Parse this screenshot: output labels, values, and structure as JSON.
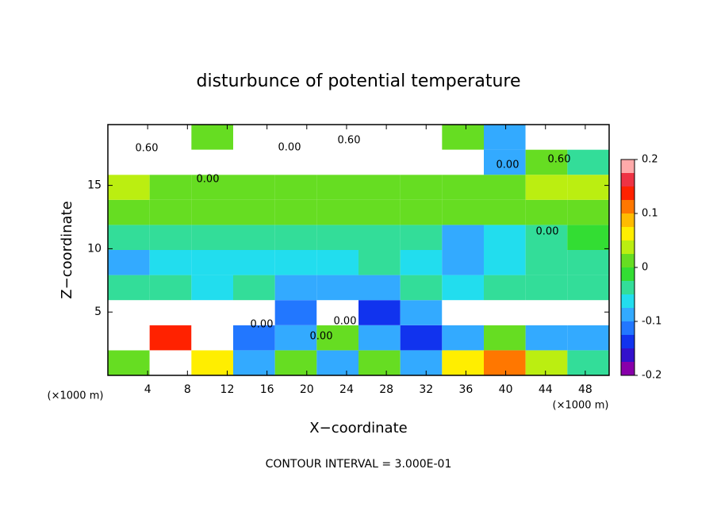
{
  "chart_data": {
    "type": "heatmap",
    "title": "disturbunce of potential temperature",
    "x_label": "X−coordinate",
    "y_label": "Z−coordinate",
    "x_unit": "(×1000 m)",
    "y_unit": "(×1000 m)",
    "footer": "CONTOUR INTERVAL = 3.000E-01",
    "xlim": [
      0,
      50.4
    ],
    "ylim": [
      0,
      19.8
    ],
    "xticks": [
      4,
      8,
      12,
      16,
      20,
      24,
      28,
      32,
      36,
      40,
      44,
      48
    ],
    "yticks": [
      5,
      10,
      15
    ],
    "x": [
      2.1,
      6.3,
      10.5,
      14.7,
      18.9,
      23.1,
      27.3,
      31.5,
      35.7,
      39.9,
      44.1,
      48.3
    ],
    "y": [
      0.99,
      2.97,
      4.95,
      6.93,
      8.91,
      10.89,
      12.87,
      14.85,
      16.83,
      18.81
    ],
    "values": [
      [
        0.02,
        -0.3,
        0.05,
        -0.1,
        0.0,
        -0.08,
        0.02,
        -0.1,
        0.05,
        0.1,
        0.03,
        -0.05
      ],
      [
        -0.3,
        0.15,
        -0.3,
        -0.12,
        -0.1,
        0.02,
        -0.1,
        -0.15,
        -0.08,
        0.02,
        -0.1,
        -0.1
      ],
      [
        -0.3,
        -0.3,
        -0.3,
        -0.3,
        -0.12,
        -0.3,
        -0.15,
        -0.1,
        -0.3,
        -0.3,
        -0.3,
        -0.3
      ],
      [
        -0.05,
        -0.05,
        -0.06,
        -0.05,
        -0.1,
        -0.1,
        -0.08,
        -0.04,
        -0.06,
        -0.05,
        -0.05,
        -0.05
      ],
      [
        -0.08,
        -0.06,
        -0.06,
        -0.07,
        -0.06,
        -0.06,
        -0.05,
        -0.07,
        -0.1,
        -0.06,
        -0.05,
        -0.04
      ],
      [
        -0.04,
        -0.05,
        -0.04,
        -0.04,
        -0.05,
        -0.05,
        -0.04,
        -0.05,
        -0.08,
        -0.06,
        -0.03,
        -0.02
      ],
      [
        0.02,
        0.01,
        0.01,
        0.02,
        0.02,
        0.02,
        0.01,
        0.02,
        0.02,
        0.0,
        0.01,
        0.0
      ],
      [
        0.04,
        0.02,
        0.02,
        0.02,
        0.02,
        0.02,
        0.02,
        0.02,
        0.02,
        0.02,
        0.03,
        0.03
      ],
      [
        -0.3,
        -0.3,
        -0.3,
        -0.3,
        -0.3,
        -0.3,
        -0.3,
        -0.3,
        -0.3,
        -0.1,
        0.02,
        -0.05
      ],
      [
        0.3,
        -0.3,
        0.02,
        0.3,
        0.3,
        0.3,
        0.3,
        0.3,
        0.02,
        -0.1,
        0.3,
        -0.3
      ]
    ],
    "clim": [
      -0.2,
      0.2
    ],
    "cticks": [
      -0.2,
      -0.1,
      0,
      0.1,
      0.2
    ],
    "colormap": [
      "#8800aa",
      "#3311cc",
      "#1133ee",
      "#2277ff",
      "#33aaff",
      "#22ddee",
      "#33dd99",
      "#33dd33",
      "#66dd22",
      "#bbee11",
      "#ffee00",
      "#ffbb00",
      "#ff7700",
      "#ff2200",
      "#ee3344",
      "#ffaaaa"
    ],
    "out_of_range_color": "#ffffff",
    "contour_labels": [
      "0.60",
      "0.00",
      "0.60",
      "0.00",
      "0.00",
      "0.60",
      "0.00",
      "0.00",
      "0.00",
      "0.00"
    ]
  }
}
